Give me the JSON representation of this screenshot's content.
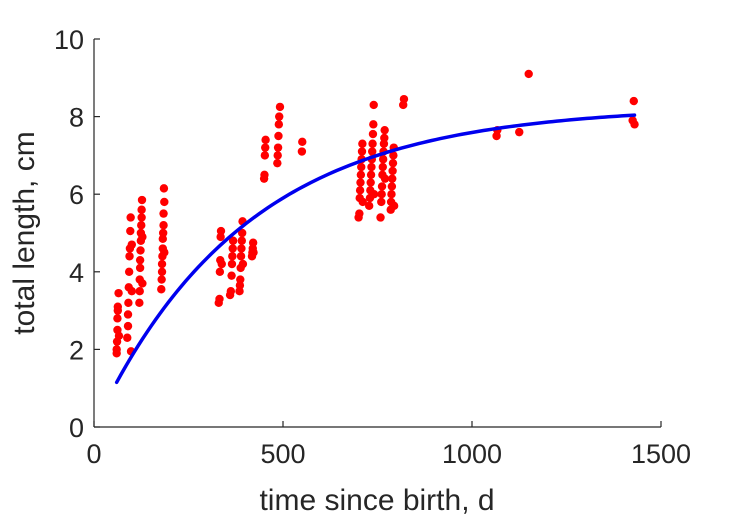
{
  "chart_data": {
    "type": "scatter",
    "title": "",
    "xlabel": "time since birth, d",
    "ylabel": "total length, cm",
    "xlim": [
      0,
      1500
    ],
    "ylim": [
      0,
      10
    ],
    "xticks": [
      0,
      500,
      1000,
      1500
    ],
    "yticks": [
      0,
      2,
      4,
      6,
      8,
      10
    ],
    "grid": false,
    "legend": "none",
    "series": [
      {
        "kind": "scatter",
        "color": "#ff0000",
        "points": [
          [
            60,
            1.9
          ],
          [
            60,
            2.0
          ],
          [
            61,
            2.2
          ],
          [
            62,
            2.5
          ],
          [
            62,
            2.8
          ],
          [
            63,
            3.0
          ],
          [
            63,
            3.1
          ],
          [
            65,
            3.45
          ],
          [
            66,
            2.35
          ],
          [
            88,
            2.3
          ],
          [
            90,
            2.6
          ],
          [
            90,
            2.9
          ],
          [
            91,
            3.2
          ],
          [
            92,
            3.6
          ],
          [
            93,
            4.0
          ],
          [
            94,
            4.4
          ],
          [
            95,
            4.6
          ],
          [
            96,
            5.05
          ],
          [
            97,
            5.4
          ],
          [
            98,
            1.95
          ],
          [
            100,
            3.5
          ],
          [
            100,
            4.7
          ],
          [
            120,
            3.2
          ],
          [
            121,
            3.5
          ],
          [
            121,
            3.8
          ],
          [
            122,
            4.1
          ],
          [
            122,
            4.3
          ],
          [
            123,
            4.55
          ],
          [
            124,
            4.8
          ],
          [
            124,
            5.0
          ],
          [
            125,
            5.2
          ],
          [
            126,
            5.4
          ],
          [
            126,
            5.6
          ],
          [
            127,
            5.85
          ],
          [
            128,
            3.7
          ],
          [
            128,
            4.9
          ],
          [
            178,
            3.55
          ],
          [
            179,
            3.8
          ],
          [
            180,
            4.0
          ],
          [
            180,
            4.2
          ],
          [
            181,
            4.4
          ],
          [
            182,
            4.6
          ],
          [
            182,
            4.85
          ],
          [
            183,
            5.0
          ],
          [
            184,
            5.2
          ],
          [
            184,
            5.5
          ],
          [
            185,
            6.15
          ],
          [
            186,
            5.8
          ],
          [
            186,
            4.5
          ],
          [
            330,
            3.2
          ],
          [
            332,
            3.3
          ],
          [
            333,
            4.0
          ],
          [
            334,
            4.3
          ],
          [
            335,
            4.9
          ],
          [
            336,
            5.05
          ],
          [
            338,
            4.2
          ],
          [
            360,
            3.4
          ],
          [
            362,
            3.5
          ],
          [
            364,
            3.9
          ],
          [
            365,
            4.2
          ],
          [
            366,
            4.4
          ],
          [
            367,
            4.6
          ],
          [
            368,
            4.8
          ],
          [
            385,
            3.5
          ],
          [
            386,
            3.65
          ],
          [
            387,
            3.8
          ],
          [
            388,
            4.1
          ],
          [
            389,
            4.4
          ],
          [
            390,
            4.6
          ],
          [
            391,
            4.8
          ],
          [
            392,
            5.0
          ],
          [
            393,
            5.3
          ],
          [
            394,
            4.2
          ],
          [
            418,
            4.4
          ],
          [
            419,
            4.5
          ],
          [
            420,
            4.6
          ],
          [
            421,
            4.75
          ],
          [
            422,
            4.5
          ],
          [
            450,
            6.4
          ],
          [
            451,
            6.5
          ],
          [
            452,
            7.0
          ],
          [
            453,
            7.2
          ],
          [
            454,
            7.4
          ],
          [
            485,
            6.8
          ],
          [
            486,
            7.0
          ],
          [
            487,
            7.2
          ],
          [
            488,
            7.5
          ],
          [
            489,
            7.8
          ],
          [
            490,
            8.0
          ],
          [
            492,
            8.25
          ],
          [
            550,
            7.1
          ],
          [
            551,
            7.35
          ],
          [
            700,
            5.4
          ],
          [
            702,
            5.5
          ],
          [
            703,
            5.9
          ],
          [
            704,
            6.1
          ],
          [
            705,
            6.3
          ],
          [
            706,
            6.5
          ],
          [
            707,
            6.7
          ],
          [
            708,
            6.9
          ],
          [
            709,
            7.1
          ],
          [
            710,
            7.3
          ],
          [
            711,
            5.8
          ],
          [
            728,
            5.7
          ],
          [
            730,
            5.9
          ],
          [
            731,
            6.1
          ],
          [
            732,
            6.3
          ],
          [
            733,
            6.5
          ],
          [
            734,
            6.7
          ],
          [
            735,
            6.9
          ],
          [
            736,
            7.1
          ],
          [
            737,
            7.3
          ],
          [
            738,
            7.55
          ],
          [
            739,
            7.8
          ],
          [
            740,
            8.3
          ],
          [
            741,
            6.0
          ],
          [
            758,
            5.4
          ],
          [
            760,
            5.8
          ],
          [
            761,
            6.0
          ],
          [
            762,
            6.2
          ],
          [
            763,
            6.5
          ],
          [
            764,
            6.7
          ],
          [
            765,
            6.9
          ],
          [
            766,
            7.1
          ],
          [
            767,
            7.3
          ],
          [
            768,
            7.45
          ],
          [
            769,
            7.65
          ],
          [
            770,
            6.4
          ],
          [
            785,
            5.6
          ],
          [
            786,
            5.8
          ],
          [
            787,
            6.0
          ],
          [
            788,
            6.2
          ],
          [
            789,
            6.4
          ],
          [
            790,
            6.6
          ],
          [
            791,
            6.8
          ],
          [
            792,
            7.0
          ],
          [
            793,
            7.2
          ],
          [
            794,
            5.7
          ],
          [
            818,
            8.3
          ],
          [
            820,
            8.45
          ],
          [
            1065,
            7.5
          ],
          [
            1067,
            7.65
          ],
          [
            1125,
            7.6
          ],
          [
            1150,
            9.1
          ],
          [
            1425,
            7.9
          ],
          [
            1428,
            8.4
          ],
          [
            1430,
            7.8
          ]
        ]
      },
      {
        "kind": "curve",
        "color": "#0000ee",
        "model": "von-bertalanffy",
        "Linf": 8.27,
        "k": 0.0025,
        "t0": 0,
        "x_from": 60,
        "x_to": 1430
      }
    ]
  }
}
